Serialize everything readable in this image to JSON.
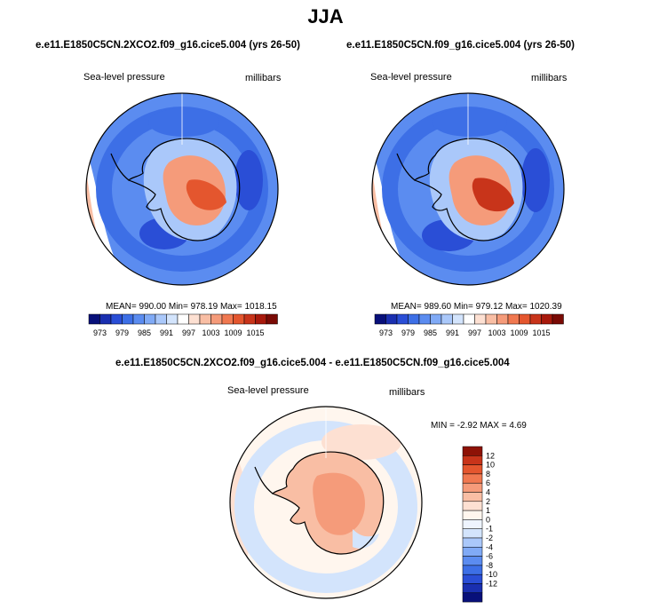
{
  "season_title": "JJA",
  "colors": {
    "abs_scale": [
      "#08107a",
      "#1a2fb0",
      "#2a4ed6",
      "#3d6fe6",
      "#5b8cf0",
      "#80aaf6",
      "#aac8fa",
      "#d3e4fc",
      "#ffffff",
      "#fde0d2",
      "#f9bea4",
      "#f59b7a",
      "#f07850",
      "#e4562e",
      "#c8341a",
      "#a8190c",
      "#7a0a05"
    ],
    "diff_scale": [
      "#08107a",
      "#1a2fb0",
      "#2a4ed6",
      "#3d6fe6",
      "#5b8cf0",
      "#80aaf6",
      "#aac8fa",
      "#d3e4fc",
      "#eef4fe",
      "#fff6ee",
      "#fde0d2",
      "#f9bea4",
      "#f59b7a",
      "#f07850",
      "#e4562e",
      "#c8341a",
      "#8e1206"
    ]
  },
  "chart_data": [
    {
      "type": "heatmap",
      "title": "e.e11.E1850C5CN.2XCO2.f09_g16.cice5.004 (yrs 26-50)",
      "variable": "Sea-level pressure",
      "units": "millibars",
      "stats_text": "MEAN= 990.00  Min= 978.19  Max= 1018.15",
      "mean": 990.0,
      "min": 978.19,
      "max": 1018.15,
      "colorbar_ticks": [
        "973",
        "979",
        "985",
        "991",
        "997",
        "1003",
        "1009",
        "1015"
      ],
      "projection": "south-polar stereographic"
    },
    {
      "type": "heatmap",
      "title": "e.e11.E1850C5CN.f09_g16.cice5.004 (yrs 26-50)",
      "variable": "Sea-level pressure",
      "units": "millibars",
      "stats_text": "MEAN= 989.60  Min= 979.12  Max= 1020.39",
      "mean": 989.6,
      "min": 979.12,
      "max": 1020.39,
      "colorbar_ticks": [
        "973",
        "979",
        "985",
        "991",
        "997",
        "1003",
        "1009",
        "1015"
      ],
      "projection": "south-polar stereographic"
    },
    {
      "type": "heatmap",
      "title": "e.e11.E1850C5CN.2XCO2.f09_g16.cice5.004 - e.e11.E1850C5CN.f09_g16.cice5.004",
      "variable": "Sea-level pressure",
      "units": "millibars",
      "stats_text": "MIN =  -2.92 MAX =   4.69",
      "min": -2.92,
      "max": 4.69,
      "colorbar_ticks": [
        "12",
        "10",
        "8",
        "6",
        "4",
        "2",
        "1",
        "0",
        "-1",
        "-2",
        "-4",
        "-6",
        "-8",
        "-10",
        "-12"
      ],
      "projection": "south-polar stereographic"
    }
  ]
}
